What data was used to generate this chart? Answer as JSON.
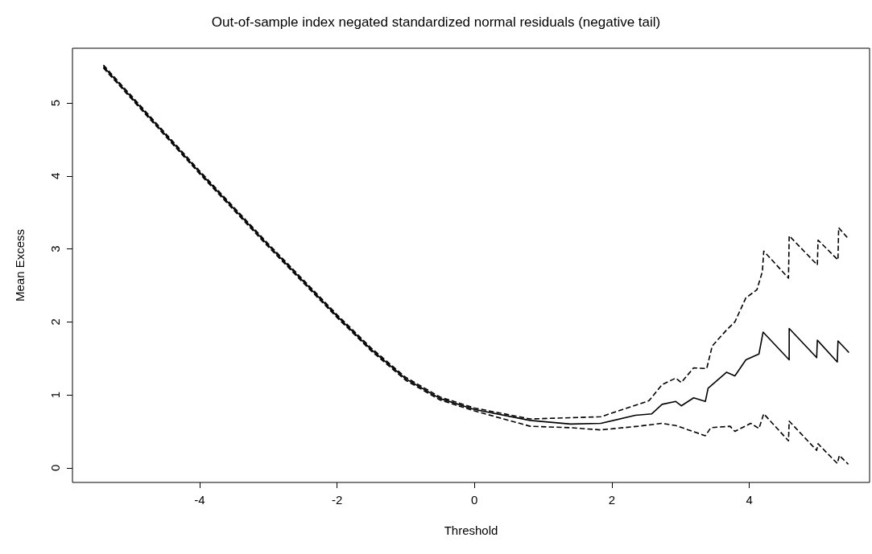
{
  "chart_data": {
    "type": "line",
    "title": "Out-of-sample index negated standardized normal residuals (negative tail)",
    "xlabel": "Threshold",
    "ylabel": "Mean Excess",
    "xlim": [
      -5.85,
      5.75
    ],
    "xticks": [
      -4,
      -2,
      0,
      2,
      4
    ],
    "ylim": [
      -0.2,
      5.75
    ],
    "yticks": [
      0,
      1,
      2,
      3,
      4,
      5
    ],
    "grid": false,
    "marker": "none",
    "series": [
      {
        "color": "#000000",
        "line_style": "solid",
        "x": [
          -5.4,
          -4,
          -3,
          -2,
          -1.5,
          -1,
          -0.5,
          0,
          0.81,
          1.4,
          1.84,
          2.34,
          2.58,
          2.73,
          2.93,
          3.01,
          3.19,
          3.36,
          3.4,
          3.67,
          3.79,
          3.95,
          4.14,
          4.2,
          4.58,
          4.58,
          4.98,
          4.99,
          5.28,
          5.29,
          5.45
        ],
        "values": [
          5.5,
          4.05,
          3.05,
          2.08,
          1.62,
          1.22,
          0.95,
          0.8,
          0.65,
          0.6,
          0.61,
          0.72,
          0.74,
          0.87,
          0.91,
          0.85,
          0.96,
          0.91,
          1.09,
          1.31,
          1.26,
          1.48,
          1.56,
          1.86,
          1.48,
          1.91,
          1.51,
          1.75,
          1.45,
          1.74,
          1.58
        ]
      },
      {
        "color": "#000000",
        "line_style": "dashed",
        "x": [
          -5.4,
          -4,
          -3,
          -2,
          -1.5,
          -1,
          -0.5,
          0,
          0.81,
          1.84,
          2.54,
          2.73,
          2.93,
          3.01,
          3.19,
          3.38,
          3.46,
          3.67,
          3.79,
          3.95,
          4.11,
          4.19,
          4.21,
          4.57,
          4.58,
          4.99,
          5.0,
          5.29,
          5.3,
          5.45
        ],
        "values": [
          5.52,
          4.07,
          3.07,
          2.1,
          1.64,
          1.24,
          0.97,
          0.82,
          0.67,
          0.7,
          0.92,
          1.14,
          1.23,
          1.17,
          1.37,
          1.36,
          1.67,
          1.89,
          2.0,
          2.33,
          2.44,
          2.69,
          2.97,
          2.6,
          3.18,
          2.78,
          3.12,
          2.85,
          3.29,
          3.13
        ]
      },
      {
        "color": "#000000",
        "line_style": "dashed",
        "x": [
          -5.4,
          -4,
          -3,
          -2,
          -1.5,
          -1,
          -0.5,
          0,
          0.81,
          1.4,
          1.84,
          2.38,
          2.73,
          2.93,
          3.36,
          3.44,
          3.72,
          3.79,
          4.02,
          4.14,
          4.21,
          4.57,
          4.58,
          4.98,
          5.0,
          5.28,
          5.31,
          5.44
        ],
        "values": [
          5.48,
          4.03,
          3.03,
          2.06,
          1.6,
          1.2,
          0.93,
          0.78,
          0.57,
          0.55,
          0.52,
          0.57,
          0.61,
          0.58,
          0.44,
          0.55,
          0.57,
          0.5,
          0.61,
          0.54,
          0.74,
          0.37,
          0.64,
          0.24,
          0.33,
          0.06,
          0.17,
          0.05
        ]
      }
    ]
  }
}
